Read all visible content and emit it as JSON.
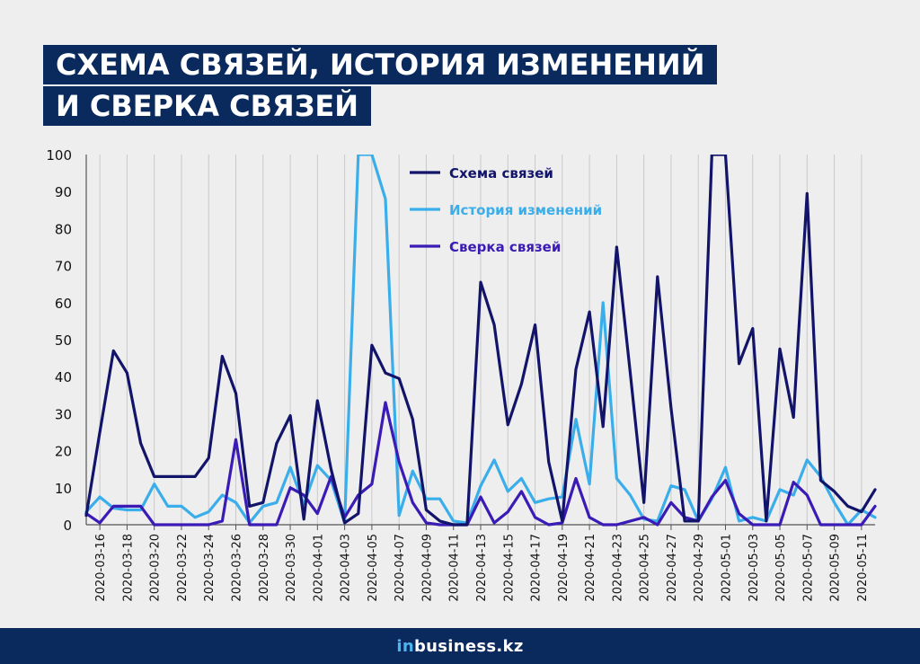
{
  "title": {
    "line1": "СХЕМА СВЯЗЕЙ, ИСТОРИЯ ИЗМЕНЕНИЙ",
    "line2": "И СВЕРКА СВЯЗЕЙ"
  },
  "logo": {
    "prefix": "in",
    "rest": "business.kz"
  },
  "chart_data": {
    "type": "line",
    "x": [
      "2020-03-15",
      "2020-03-16",
      "2020-03-17",
      "2020-03-18",
      "2020-03-19",
      "2020-03-20",
      "2020-03-21",
      "2020-03-22",
      "2020-03-23",
      "2020-03-24",
      "2020-03-25",
      "2020-03-26",
      "2020-03-27",
      "2020-03-28",
      "2020-03-29",
      "2020-03-30",
      "2020-03-31",
      "2020-04-01",
      "2020-04-02",
      "2020-04-03",
      "2020-04-04",
      "2020-04-05",
      "2020-04-06",
      "2020-04-07",
      "2020-04-08",
      "2020-04-09",
      "2020-04-10",
      "2020-04-11",
      "2020-04-12",
      "2020-04-13",
      "2020-04-14",
      "2020-04-15",
      "2020-04-16",
      "2020-04-17",
      "2020-04-18",
      "2020-04-19",
      "2020-04-20",
      "2020-04-21",
      "2020-04-22",
      "2020-04-23",
      "2020-04-24",
      "2020-04-25",
      "2020-04-26",
      "2020-04-27",
      "2020-04-28",
      "2020-04-29",
      "2020-04-30",
      "2020-05-01",
      "2020-05-02",
      "2020-05-03",
      "2020-05-04",
      "2020-05-05",
      "2020-05-06",
      "2020-05-07",
      "2020-05-08",
      "2020-05-09",
      "2020-05-10",
      "2020-05-11",
      "2020-05-12"
    ],
    "xticks": [
      "2020-03-16",
      "2020-03-18",
      "2020-03-20",
      "2020-03-22",
      "2020-03-24",
      "2020-03-26",
      "2020-03-28",
      "2020-03-30",
      "2020-04-01",
      "2020-04-03",
      "2020-04-05",
      "2020-04-07",
      "2020-04-09",
      "2020-04-11",
      "2020-04-13",
      "2020-04-15",
      "2020-04-17",
      "2020-04-19",
      "2020-04-21",
      "2020-04-23",
      "2020-04-25",
      "2020-04-27",
      "2020-04-29",
      "2020-05-01",
      "2020-05-03",
      "2020-05-05",
      "2020-05-07",
      "2020-05-09",
      "2020-05-11"
    ],
    "yticks": [
      0,
      10,
      20,
      30,
      40,
      50,
      60,
      70,
      80,
      90,
      100
    ],
    "ylim": [
      0,
      100
    ],
    "grid": "vertical",
    "legend_position": "top-center",
    "series": [
      {
        "name": "Схема связей",
        "color": "#12146a",
        "values": [
          2.5,
          25,
          47,
          41,
          22,
          13,
          13,
          13,
          13,
          18,
          45.5,
          35.5,
          5,
          6,
          22,
          29.5,
          1.5,
          33.5,
          15,
          0.5,
          3,
          48.5,
          41,
          39.5,
          28.5,
          4,
          1,
          0,
          0,
          65.5,
          54,
          27,
          38,
          54,
          17,
          1,
          42,
          57.5,
          26.5,
          75,
          41,
          6,
          67,
          31.5,
          1,
          1,
          100,
          100,
          43.5,
          53,
          1,
          47.5,
          29,
          89.5,
          12,
          9,
          5,
          3.5,
          9.5
        ]
      },
      {
        "name": "История изменений",
        "color": "#3aaeea",
        "values": [
          3.5,
          7.5,
          4.5,
          4,
          4,
          11,
          5,
          5,
          2,
          3.5,
          8,
          6,
          0.5,
          5,
          6,
          15.5,
          5.5,
          16,
          12,
          0.5,
          100,
          100,
          88,
          2.5,
          14.5,
          7,
          7,
          1,
          0.5,
          10.5,
          17.5,
          9,
          12.5,
          6,
          7,
          7.5,
          28.5,
          11,
          60,
          12.5,
          8,
          1.5,
          1,
          10.5,
          9.5,
          1,
          7,
          15.5,
          1,
          2,
          1,
          9.5,
          8,
          17.5,
          13,
          6,
          0,
          4,
          2
        ]
      },
      {
        "name": "Сверка связей",
        "color": "#3a1bb5",
        "values": [
          3,
          0.5,
          5,
          5,
          5,
          0,
          0,
          0,
          0,
          0,
          1,
          23,
          0,
          0,
          0,
          10,
          8,
          3,
          13,
          2,
          8,
          11,
          33,
          17,
          6,
          0.5,
          0,
          0,
          0,
          7.5,
          0.5,
          3.5,
          9,
          2,
          0,
          0.5,
          12.5,
          2,
          0,
          0,
          1,
          2,
          0,
          6,
          2,
          1,
          7.5,
          12,
          3,
          0,
          0,
          0,
          11.5,
          8,
          0,
          0,
          0,
          0,
          5
        ]
      }
    ]
  }
}
